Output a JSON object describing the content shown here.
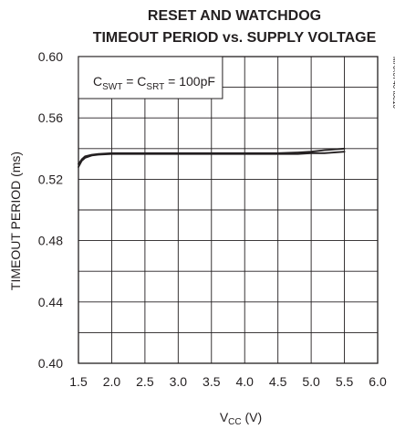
{
  "chart_data": {
    "type": "line",
    "title": [
      "RESET AND WATCHDOG",
      "TIMEOUT PERIOD vs. SUPPLY VOLTAGE"
    ],
    "xlabel": {
      "main": "V",
      "sub": "CC",
      "unit": " (V)"
    },
    "ylabel": "TIMEOUT PERIOD (ms)",
    "xlim": [
      1.5,
      6.0
    ],
    "ylim": [
      0.4,
      0.6
    ],
    "xticks": [
      "1.5",
      "2.0",
      "2.5",
      "3.0",
      "3.5",
      "4.0",
      "4.5",
      "5.0",
      "5.5",
      "6.0"
    ],
    "yticks": [
      "0.40",
      "0.44",
      "0.48",
      "0.52",
      "0.56",
      "0.60"
    ],
    "grid": true,
    "annotation": {
      "parts": [
        {
          "text": "C",
          "sub": false
        },
        {
          "text": "SWT",
          "sub": true
        },
        {
          "text": " = C",
          "sub": false
        },
        {
          "text": "SRT",
          "sub": true
        },
        {
          "text": " = 100pF",
          "sub": false
        }
      ]
    },
    "figure_id": "MAX6746 toc10",
    "series": [
      {
        "x": [
          1.5,
          1.55,
          1.6,
          1.7,
          1.8,
          2.0,
          2.5,
          3.0,
          3.5,
          4.0,
          4.5,
          4.8,
          5.0,
          5.2,
          5.5
        ],
        "y": [
          0.53,
          0.533,
          0.535,
          0.536,
          0.5365,
          0.537,
          0.537,
          0.537,
          0.537,
          0.537,
          0.537,
          0.5375,
          0.538,
          0.539,
          0.54
        ]
      },
      {
        "x": [
          1.5,
          1.55,
          1.6,
          1.7,
          1.8,
          2.0,
          2.5,
          3.0,
          3.5,
          4.0,
          4.5,
          4.8,
          5.0,
          5.2,
          5.5
        ],
        "y": [
          0.528,
          0.532,
          0.534,
          0.5355,
          0.536,
          0.5365,
          0.5365,
          0.5365,
          0.5365,
          0.5365,
          0.5365,
          0.5365,
          0.537,
          0.537,
          0.538
        ]
      }
    ]
  }
}
